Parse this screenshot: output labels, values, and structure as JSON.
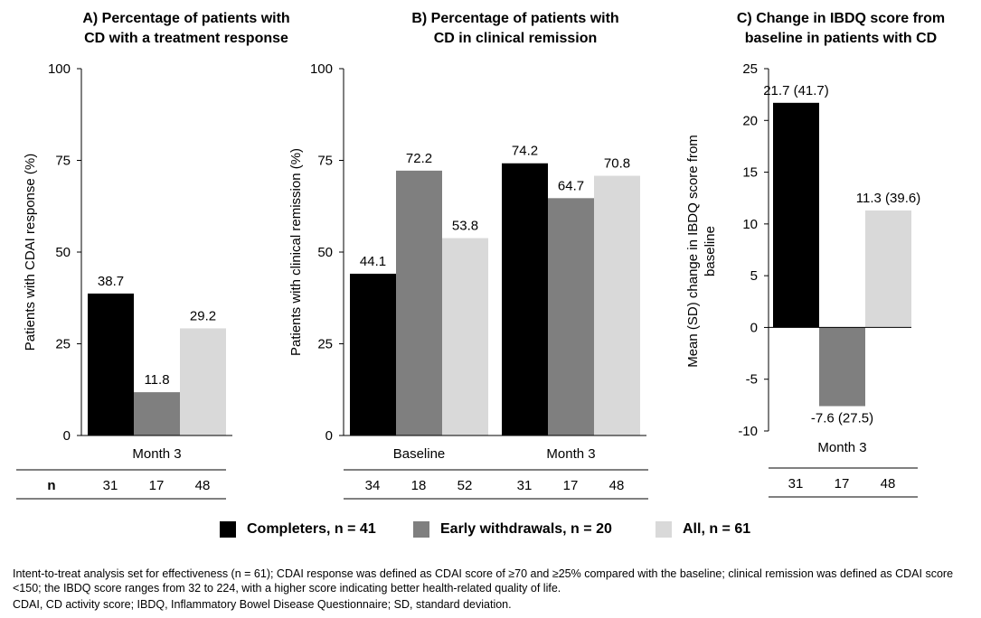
{
  "colors": {
    "completers": "#000000",
    "early_withdrawals": "#7f7f7f",
    "all": "#d9d9d9"
  },
  "chart_data": [
    {
      "type": "bar",
      "title": "A) Percentage of patients with CD with a treatment response",
      "title_lines": [
        "A) Percentage of patients with",
        "CD with a treatment response"
      ],
      "ylabel": "Patients with CDAI response (%)",
      "ylim": [
        0,
        100
      ],
      "yticks": [
        "0",
        "25",
        "50",
        "75",
        "100"
      ],
      "categories": [
        "Month 3"
      ],
      "series": [
        {
          "name": "Completers, n = 41",
          "values": [
            38.7
          ],
          "labels": [
            "38.7"
          ]
        },
        {
          "name": "Early withdrawals, n = 20",
          "values": [
            11.8
          ],
          "labels": [
            "11.8"
          ]
        },
        {
          "name": "All, n = 61",
          "values": [
            29.2
          ],
          "labels": [
            "29.2"
          ]
        }
      ],
      "n_label": "n",
      "n_values": [
        "31",
        "17",
        "48"
      ]
    },
    {
      "type": "bar",
      "title": "B) Percentage of patients with CD in clinical remission",
      "title_lines": [
        "B) Percentage of patients with",
        "CD in clinical remission"
      ],
      "ylabel": "Patients with clinical remission (%)",
      "ylim": [
        0,
        100
      ],
      "yticks": [
        "0",
        "25",
        "50",
        "75",
        "100"
      ],
      "categories": [
        "Baseline",
        "Month 3"
      ],
      "series": [
        {
          "name": "Completers, n = 41",
          "values": [
            44.1,
            74.2
          ],
          "labels": [
            "44.1",
            "74.2"
          ]
        },
        {
          "name": "Early withdrawals, n = 20",
          "values": [
            72.2,
            64.7
          ],
          "labels": [
            "72.2",
            "64.7"
          ]
        },
        {
          "name": "All, n = 61",
          "values": [
            53.8,
            70.8
          ],
          "labels": [
            "53.8",
            "70.8"
          ]
        }
      ],
      "n_values": [
        "34",
        "18",
        "52",
        "31",
        "17",
        "48"
      ]
    },
    {
      "type": "bar",
      "title": "C) Change in IBDQ score from baseline in patients with CD",
      "title_lines": [
        "C) Change in IBDQ score from",
        "baseline in patients with CD"
      ],
      "ylabel": "Mean (SD) change in IBDQ score from baseline",
      "ylabel_lines": [
        "Mean (SD) change in IBDQ score from",
        "baseline"
      ],
      "ylim": [
        -10,
        25
      ],
      "yticks": [
        "-10",
        "-5",
        "0",
        "5",
        "10",
        "15",
        "20",
        "25"
      ],
      "categories": [
        "Month 3"
      ],
      "series": [
        {
          "name": "Completers, n = 41",
          "values": [
            21.7
          ],
          "labels": [
            "21.7 (41.7)"
          ]
        },
        {
          "name": "Early withdrawals, n = 20",
          "values": [
            -7.6
          ],
          "labels": [
            "-7.6 (27.5)"
          ]
        },
        {
          "name": "All, n = 61",
          "values": [
            11.3
          ],
          "labels": [
            "11.3 (39.6)"
          ]
        }
      ],
      "n_values": [
        "31",
        "17",
        "48"
      ]
    }
  ],
  "legend": [
    {
      "label": "Completers, n = 41"
    },
    {
      "label": "Early withdrawals, n = 20"
    },
    {
      "label": "All, n = 61"
    }
  ],
  "footnotes": [
    "Intent-to-treat analysis set for effectiveness (n = 61); CDAI response was defined as CDAI score of ≥70 and ≥25% compared with the baseline; clinical remission was defined as CDAI score <150; the IBDQ score ranges from 32 to 224, with a higher score indicating better health-related quality of life.",
    "CDAI, CD activity score; IBDQ, Inflammatory Bowel Disease Questionnaire; SD, standard deviation."
  ]
}
